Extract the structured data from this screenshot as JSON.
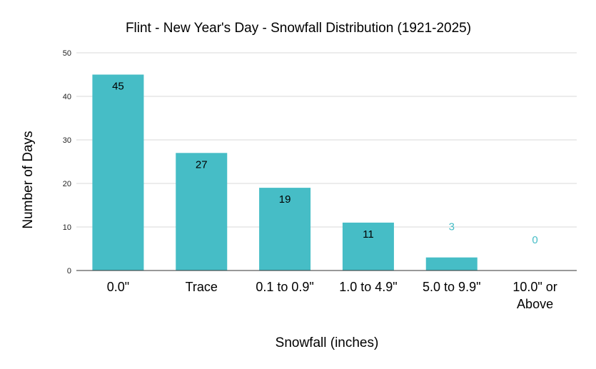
{
  "chart_data": {
    "type": "bar",
    "title": "Flint - New Year's Day - Snowfall Distribution (1921-2025)",
    "xlabel": "Snowfall (inches)",
    "ylabel": "Number of Days",
    "categories": [
      "0.0\"",
      "Trace",
      "0.1 to 0.9\"",
      "1.0 to 4.9\"",
      "5.0 to 9.9\"",
      "10.0\" or Above"
    ],
    "values": [
      45,
      27,
      19,
      11,
      3,
      0
    ],
    "ylim": [
      0,
      50
    ],
    "yticks": [
      0,
      10,
      20,
      30,
      40,
      50
    ],
    "grid": true,
    "legend": "none",
    "bar_color": "#46bdc6",
    "label_inside_color": "#000000",
    "label_outside_color": "#46bdc6"
  }
}
